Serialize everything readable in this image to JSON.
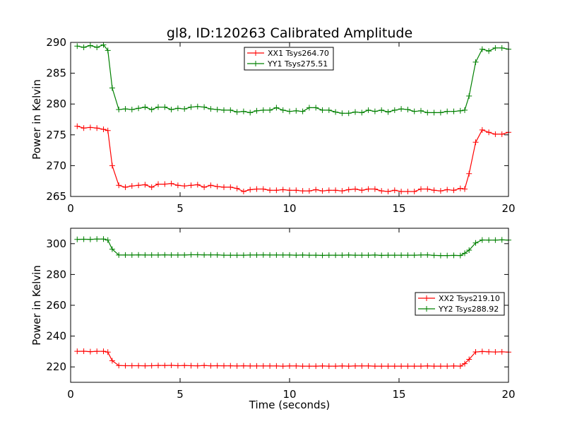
{
  "title": "gl8, ID:120263 Calibrated Amplitude",
  "chart_data": [
    {
      "type": "line",
      "ylabel": "Power in Kelvin",
      "xlabel": "",
      "xlim": [
        0,
        20
      ],
      "ylim": [
        265,
        290
      ],
      "xticks": [
        0,
        5,
        10,
        15,
        20
      ],
      "yticks": [
        265,
        270,
        275,
        280,
        285,
        290
      ],
      "grid": false,
      "legend_position": "upper-center",
      "x": [
        0.3,
        0.6,
        0.9,
        1.2,
        1.5,
        1.7,
        1.9,
        2.2,
        2.5,
        2.8,
        3.1,
        3.4,
        3.7,
        4.0,
        4.3,
        4.6,
        4.9,
        5.2,
        5.5,
        5.8,
        6.1,
        6.4,
        6.7,
        7.0,
        7.3,
        7.6,
        7.9,
        8.2,
        8.5,
        8.8,
        9.1,
        9.4,
        9.7,
        10.0,
        10.3,
        10.6,
        10.9,
        11.2,
        11.5,
        11.8,
        12.1,
        12.4,
        12.7,
        13.0,
        13.3,
        13.6,
        13.9,
        14.2,
        14.5,
        14.8,
        15.1,
        15.4,
        15.7,
        16.0,
        16.3,
        16.6,
        16.9,
        17.2,
        17.5,
        17.8,
        18.0,
        18.2,
        18.5,
        18.8,
        19.1,
        19.4,
        19.7,
        20.0
      ],
      "series": [
        {
          "name": "XX1 Tsys264.70",
          "color": "#ff0000",
          "values": [
            276.4,
            276.1,
            276.2,
            276.1,
            275.9,
            275.7,
            270.0,
            266.8,
            266.5,
            266.7,
            266.8,
            266.9,
            266.5,
            267.0,
            267.0,
            267.1,
            266.8,
            266.7,
            266.8,
            266.9,
            266.5,
            266.8,
            266.6,
            266.5,
            266.5,
            266.3,
            265.8,
            266.1,
            266.2,
            266.2,
            266.0,
            266.0,
            266.1,
            266.0,
            266.0,
            265.9,
            265.9,
            266.1,
            265.9,
            266.0,
            266.0,
            265.9,
            266.1,
            266.2,
            266.0,
            266.2,
            266.2,
            265.9,
            265.8,
            266.0,
            265.8,
            265.8,
            265.8,
            266.2,
            266.2,
            266.0,
            265.9,
            266.1,
            266.0,
            266.3,
            266.2,
            268.7,
            273.8,
            275.8,
            275.4,
            275.1,
            275.1,
            275.4
          ]
        },
        {
          "name": "YY1 Tsys275.51",
          "color": "#008000",
          "values": [
            289.4,
            289.2,
            289.5,
            289.2,
            289.6,
            288.7,
            282.6,
            279.1,
            279.2,
            279.1,
            279.3,
            279.5,
            279.1,
            279.5,
            279.5,
            279.1,
            279.3,
            279.2,
            279.5,
            279.6,
            279.5,
            279.2,
            279.1,
            279.0,
            279.0,
            278.7,
            278.8,
            278.6,
            278.9,
            279.0,
            279.0,
            279.4,
            279.0,
            278.8,
            278.9,
            278.8,
            279.4,
            279.4,
            279.0,
            279.0,
            278.7,
            278.5,
            278.5,
            278.7,
            278.6,
            279.0,
            278.8,
            279.0,
            278.7,
            279.0,
            279.2,
            279.1,
            278.8,
            278.9,
            278.6,
            278.6,
            278.6,
            278.8,
            278.8,
            278.9,
            279.0,
            281.3,
            286.8,
            288.9,
            288.6,
            289.1,
            289.1,
            288.9
          ]
        }
      ]
    },
    {
      "type": "line",
      "ylabel": "Power in Kelvin",
      "xlabel": "Time (seconds)",
      "xlim": [
        0,
        20
      ],
      "ylim": [
        210,
        310
      ],
      "xticks": [
        0,
        5,
        10,
        15,
        20
      ],
      "yticks": [
        220,
        240,
        260,
        280,
        300
      ],
      "grid": false,
      "legend_position": "center-right",
      "x": [
        0.3,
        0.6,
        0.9,
        1.2,
        1.5,
        1.7,
        1.9,
        2.2,
        2.5,
        2.8,
        3.1,
        3.4,
        3.7,
        4.0,
        4.3,
        4.6,
        4.9,
        5.2,
        5.5,
        5.8,
        6.1,
        6.4,
        6.7,
        7.0,
        7.3,
        7.6,
        7.9,
        8.2,
        8.5,
        8.8,
        9.1,
        9.4,
        9.7,
        10.0,
        10.3,
        10.6,
        10.9,
        11.2,
        11.5,
        11.8,
        12.1,
        12.4,
        12.7,
        13.0,
        13.3,
        13.6,
        13.9,
        14.2,
        14.5,
        14.8,
        15.1,
        15.4,
        15.7,
        16.0,
        16.3,
        16.6,
        16.9,
        17.2,
        17.5,
        17.8,
        18.0,
        18.2,
        18.5,
        18.8,
        19.1,
        19.4,
        19.7,
        20.0
      ],
      "series": [
        {
          "name": "XX2 Tsys219.10",
          "color": "#ff0000",
          "values": [
            230.1,
            230.2,
            229.9,
            230.1,
            230.1,
            229.6,
            224.0,
            220.9,
            220.8,
            220.8,
            220.8,
            220.7,
            220.8,
            220.9,
            220.9,
            221.0,
            220.8,
            220.9,
            220.8,
            220.7,
            220.9,
            220.7,
            220.8,
            220.7,
            220.7,
            220.6,
            220.7,
            220.6,
            220.6,
            220.6,
            220.6,
            220.6,
            220.5,
            220.6,
            220.6,
            220.5,
            220.5,
            220.5,
            220.6,
            220.5,
            220.5,
            220.6,
            220.5,
            220.6,
            220.6,
            220.6,
            220.5,
            220.5,
            220.5,
            220.5,
            220.5,
            220.5,
            220.5,
            220.5,
            220.6,
            220.5,
            220.5,
            220.5,
            220.6,
            220.5,
            222.1,
            224.9,
            229.7,
            230.0,
            229.8,
            229.7,
            229.8,
            229.6
          ]
        },
        {
          "name": "YY2 Tsys288.92",
          "color": "#008000",
          "values": [
            302.8,
            302.9,
            302.8,
            303.0,
            303.0,
            302.3,
            296.4,
            292.6,
            292.6,
            292.6,
            292.7,
            292.6,
            292.6,
            292.6,
            292.7,
            292.6,
            292.6,
            292.6,
            292.8,
            292.8,
            292.7,
            292.7,
            292.7,
            292.5,
            292.5,
            292.5,
            292.5,
            292.6,
            292.6,
            292.7,
            292.6,
            292.6,
            292.6,
            292.6,
            292.5,
            292.6,
            292.5,
            292.5,
            292.4,
            292.5,
            292.5,
            292.5,
            292.6,
            292.5,
            292.5,
            292.5,
            292.6,
            292.4,
            292.5,
            292.5,
            292.5,
            292.5,
            292.5,
            292.6,
            292.7,
            292.4,
            292.3,
            292.3,
            292.4,
            292.3,
            293.8,
            295.8,
            300.5,
            302.4,
            302.3,
            302.3,
            302.5,
            302.3
          ]
        }
      ]
    }
  ]
}
